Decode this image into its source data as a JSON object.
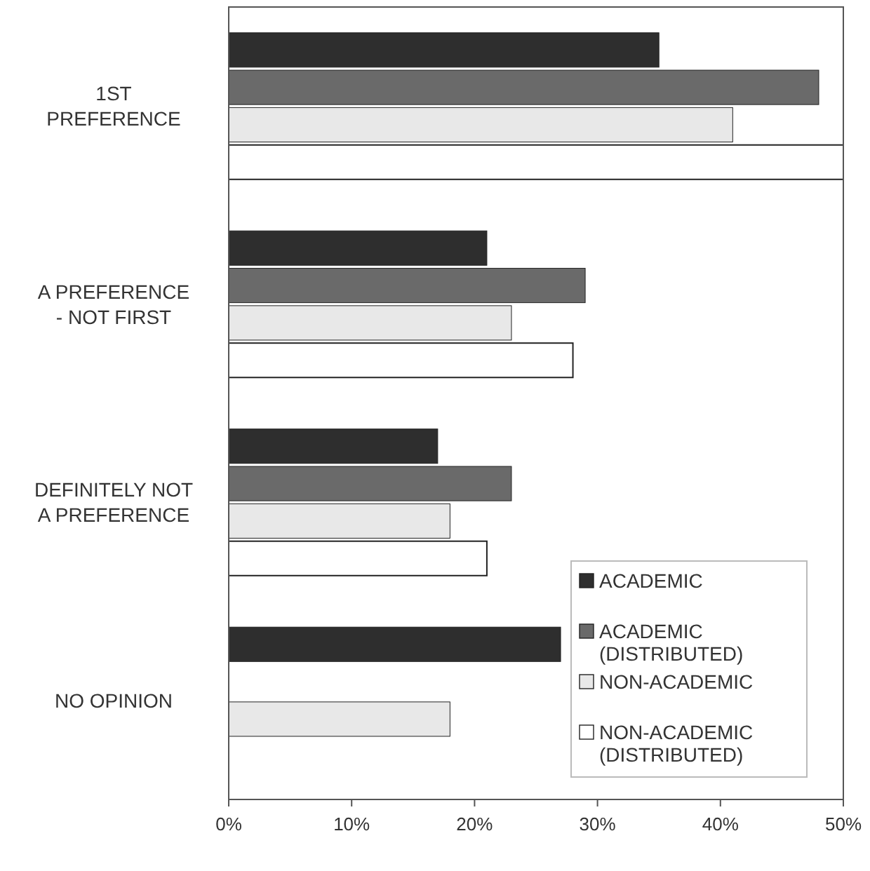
{
  "chart_data": {
    "type": "bar",
    "orientation": "horizontal",
    "categories": [
      "1ST PREFERENCE",
      "A PREFERENCE - NOT FIRST",
      "DEFINITELY NOT A PREFERENCE",
      "NO OPINION"
    ],
    "series": [
      {
        "name": "ACADEMIC",
        "color": "#2e2e2e",
        "values": [
          35,
          21,
          17,
          27
        ]
      },
      {
        "name": "ACADEMIC (DISTRIBUTED)",
        "color": "#6a6a6a",
        "values": [
          48,
          29,
          23,
          null
        ]
      },
      {
        "name": "NON-ACADEMIC",
        "color": "#e8e8e8",
        "values": [
          41,
          23,
          18,
          18
        ]
      },
      {
        "name": "NON-ACADEMIC (DISTRIBUTED)",
        "color": "#ffffff",
        "values": [
          50,
          28,
          21,
          null
        ]
      }
    ],
    "xlim": [
      0,
      50
    ],
    "xticks": [
      {
        "value": 0,
        "label": "0%"
      },
      {
        "value": 10,
        "label": "10%"
      },
      {
        "value": 20,
        "label": "20%"
      },
      {
        "value": 30,
        "label": "30%"
      },
      {
        "value": 40,
        "label": "40%"
      },
      {
        "value": 50,
        "label": "50%"
      }
    ],
    "grid": false,
    "legend": "bottom right"
  }
}
